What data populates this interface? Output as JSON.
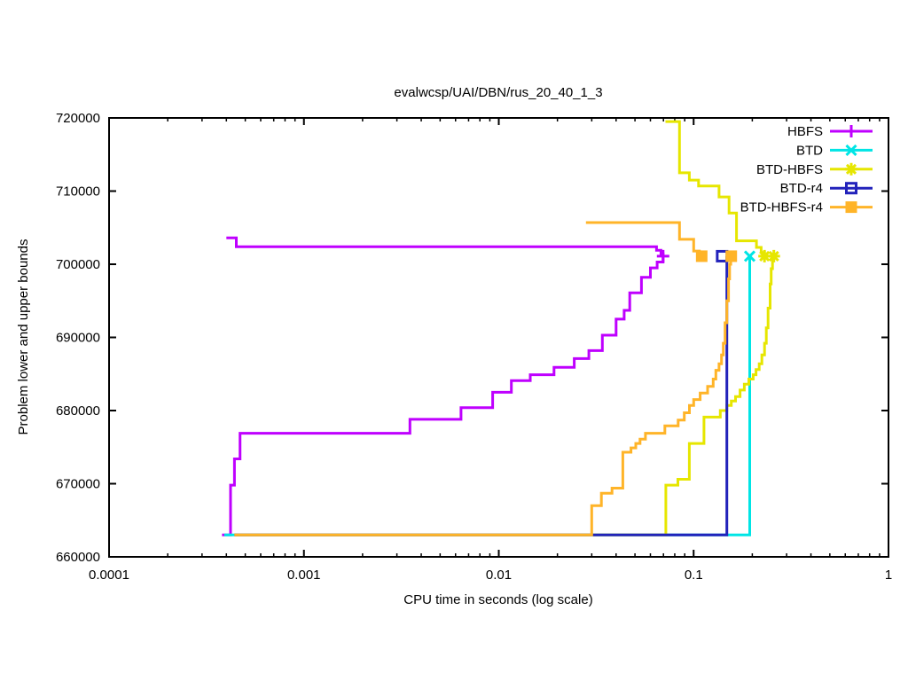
{
  "background": "#ffffff",
  "chart_data": {
    "type": "line",
    "title": "evalwcsp/UAI/DBN/rus_20_40_1_3",
    "xlabel": "CPU time in seconds (log scale)",
    "ylabel": "Problem lower and upper bounds",
    "x_scale": "log",
    "xlim": [
      0.0001,
      1
    ],
    "ylim": [
      660000,
      720000
    ],
    "x_ticks": [
      0.0001,
      0.001,
      0.01,
      0.1,
      1
    ],
    "x_tick_labels": [
      "0.0001",
      "0.001",
      "0.01",
      "0.1",
      "1"
    ],
    "y_ticks": [
      660000,
      670000,
      680000,
      690000,
      700000,
      710000,
      720000
    ],
    "grid": false,
    "legend_position": "top-right-inside",
    "legend": [
      {
        "label": "HBFS",
        "marker": "plus",
        "color": "#bf00ff"
      },
      {
        "label": "BTD",
        "marker": "cross",
        "color": "#00e5e5"
      },
      {
        "label": "BTD-HBFS",
        "marker": "asterisk",
        "color": "#e6e600"
      },
      {
        "label": "BTD-r4",
        "marker": "square-open",
        "color": "#2222bb"
      },
      {
        "label": "BTD-HBFS-r4",
        "marker": "square-filled",
        "color": "#ffb428"
      }
    ],
    "series": [
      {
        "name": "HBFS",
        "role": "upper-bound",
        "color": "#bf00ff",
        "points": [
          [
            0.0004,
            703600
          ],
          [
            0.00045,
            703600
          ],
          [
            0.00045,
            702400
          ],
          [
            0.0645,
            702400
          ],
          [
            0.0645,
            701900
          ],
          [
            0.068,
            701900
          ],
          [
            0.068,
            701400
          ],
          [
            0.0697,
            701400
          ],
          [
            0.0697,
            701100
          ]
        ]
      },
      {
        "name": "HBFS",
        "role": "lower-bound",
        "color": "#bf00ff",
        "points": [
          [
            0.00038,
            663000
          ],
          [
            0.00042,
            663000
          ],
          [
            0.00042,
            669800
          ],
          [
            0.00044,
            669800
          ],
          [
            0.00044,
            673400
          ],
          [
            0.00047,
            673400
          ],
          [
            0.00047,
            676900
          ],
          [
            0.0035,
            676900
          ],
          [
            0.0035,
            678800
          ],
          [
            0.0064,
            678800
          ],
          [
            0.0064,
            680400
          ],
          [
            0.0093,
            680400
          ],
          [
            0.0093,
            682500
          ],
          [
            0.0116,
            682500
          ],
          [
            0.0116,
            684100
          ],
          [
            0.0145,
            684100
          ],
          [
            0.0145,
            684900
          ],
          [
            0.0192,
            684900
          ],
          [
            0.0192,
            685900
          ],
          [
            0.0244,
            685900
          ],
          [
            0.0244,
            687100
          ],
          [
            0.029,
            687100
          ],
          [
            0.029,
            688200
          ],
          [
            0.034,
            688200
          ],
          [
            0.034,
            690300
          ],
          [
            0.04,
            690300
          ],
          [
            0.04,
            692500
          ],
          [
            0.044,
            692500
          ],
          [
            0.044,
            693700
          ],
          [
            0.047,
            693700
          ],
          [
            0.047,
            696100
          ],
          [
            0.054,
            696100
          ],
          [
            0.054,
            698200
          ],
          [
            0.06,
            698200
          ],
          [
            0.06,
            699500
          ],
          [
            0.065,
            699500
          ],
          [
            0.065,
            700300
          ],
          [
            0.0697,
            700300
          ],
          [
            0.0697,
            701100
          ]
        ]
      },
      {
        "name": "BTD",
        "role": "lower-bound",
        "color": "#00e5e5",
        "points": [
          [
            0.00039,
            663000
          ],
          [
            0.194,
            663000
          ],
          [
            0.194,
            701100
          ]
        ]
      },
      {
        "name": "BTD-HBFS",
        "role": "upper-bound",
        "color": "#e6e600",
        "points": [
          [
            0.0717,
            719500
          ],
          [
            0.0846,
            719500
          ],
          [
            0.0846,
            712500
          ],
          [
            0.095,
            712500
          ],
          [
            0.095,
            711500
          ],
          [
            0.106,
            711500
          ],
          [
            0.106,
            710700
          ],
          [
            0.135,
            710700
          ],
          [
            0.135,
            709200
          ],
          [
            0.152,
            709200
          ],
          [
            0.152,
            707000
          ],
          [
            0.166,
            707000
          ],
          [
            0.166,
            703200
          ],
          [
            0.21,
            703200
          ],
          [
            0.21,
            702300
          ],
          [
            0.222,
            702300
          ],
          [
            0.222,
            701600
          ],
          [
            0.231,
            701600
          ],
          [
            0.231,
            701100
          ]
        ]
      },
      {
        "name": "BTD-HBFS",
        "role": "lower-bound",
        "color": "#e6e600",
        "points": [
          [
            0.00044,
            663000
          ],
          [
            0.072,
            663000
          ],
          [
            0.072,
            669800
          ],
          [
            0.083,
            669800
          ],
          [
            0.083,
            670600
          ],
          [
            0.095,
            670600
          ],
          [
            0.095,
            675500
          ],
          [
            0.113,
            675500
          ],
          [
            0.113,
            679100
          ],
          [
            0.137,
            679100
          ],
          [
            0.137,
            680000
          ],
          [
            0.148,
            680000
          ],
          [
            0.148,
            680700
          ],
          [
            0.156,
            680700
          ],
          [
            0.156,
            681300
          ],
          [
            0.164,
            681300
          ],
          [
            0.164,
            681900
          ],
          [
            0.173,
            681900
          ],
          [
            0.173,
            682800
          ],
          [
            0.182,
            682800
          ],
          [
            0.182,
            683600
          ],
          [
            0.192,
            683600
          ],
          [
            0.192,
            684300
          ],
          [
            0.202,
            684300
          ],
          [
            0.202,
            684900
          ],
          [
            0.209,
            684900
          ],
          [
            0.209,
            685600
          ],
          [
            0.217,
            685600
          ],
          [
            0.217,
            686400
          ],
          [
            0.224,
            686400
          ],
          [
            0.224,
            687600
          ],
          [
            0.231,
            687600
          ],
          [
            0.231,
            689200
          ],
          [
            0.236,
            689200
          ],
          [
            0.236,
            691300
          ],
          [
            0.241,
            691300
          ],
          [
            0.241,
            694000
          ],
          [
            0.247,
            694000
          ],
          [
            0.247,
            697300
          ],
          [
            0.25,
            697300
          ],
          [
            0.25,
            699400
          ],
          [
            0.254,
            699400
          ],
          [
            0.254,
            701100
          ],
          [
            0.258,
            701100
          ]
        ]
      },
      {
        "name": "BTD-r4",
        "role": "lower-bound",
        "color": "#2222bb",
        "points": [
          [
            0.00044,
            663000
          ],
          [
            0.148,
            663000
          ],
          [
            0.148,
            701100
          ]
        ]
      },
      {
        "name": "BTD-HBFS-r4",
        "role": "upper-bound",
        "color": "#ffb428",
        "points": [
          [
            0.028,
            705700
          ],
          [
            0.0846,
            705700
          ],
          [
            0.0846,
            703400
          ],
          [
            0.1,
            703400
          ],
          [
            0.1,
            701800
          ],
          [
            0.107,
            701800
          ],
          [
            0.107,
            701100
          ],
          [
            0.11,
            701100
          ]
        ]
      },
      {
        "name": "BTD-HBFS-r4",
        "role": "lower-bound",
        "color": "#ffb428",
        "points": [
          [
            0.00044,
            663000
          ],
          [
            0.03,
            663000
          ],
          [
            0.03,
            667000
          ],
          [
            0.0336,
            667000
          ],
          [
            0.0336,
            668700
          ],
          [
            0.0381,
            668700
          ],
          [
            0.0381,
            669400
          ],
          [
            0.0433,
            669400
          ],
          [
            0.0433,
            674300
          ],
          [
            0.0477,
            674300
          ],
          [
            0.0477,
            674900
          ],
          [
            0.0505,
            674900
          ],
          [
            0.0505,
            675500
          ],
          [
            0.0531,
            675500
          ],
          [
            0.0531,
            676100
          ],
          [
            0.0566,
            676100
          ],
          [
            0.0566,
            676900
          ],
          [
            0.0712,
            676900
          ],
          [
            0.0712,
            677900
          ],
          [
            0.0833,
            677900
          ],
          [
            0.0833,
            678700
          ],
          [
            0.0895,
            678700
          ],
          [
            0.0895,
            679700
          ],
          [
            0.0951,
            679700
          ],
          [
            0.0951,
            680700
          ],
          [
            0.1,
            680700
          ],
          [
            0.1,
            681500
          ],
          [
            0.108,
            681500
          ],
          [
            0.108,
            682400
          ],
          [
            0.118,
            682400
          ],
          [
            0.118,
            683300
          ],
          [
            0.126,
            683300
          ],
          [
            0.126,
            684300
          ],
          [
            0.13,
            684300
          ],
          [
            0.13,
            685500
          ],
          [
            0.135,
            685500
          ],
          [
            0.135,
            686400
          ],
          [
            0.139,
            686400
          ],
          [
            0.139,
            687600
          ],
          [
            0.142,
            687600
          ],
          [
            0.142,
            689200
          ],
          [
            0.145,
            689200
          ],
          [
            0.145,
            692000
          ],
          [
            0.148,
            692000
          ],
          [
            0.148,
            695000
          ],
          [
            0.151,
            695000
          ],
          [
            0.151,
            698000
          ],
          [
            0.153,
            698000
          ],
          [
            0.153,
            700000
          ],
          [
            0.155,
            700000
          ],
          [
            0.155,
            701100
          ]
        ]
      }
    ],
    "markers": [
      {
        "name": "HBFS",
        "shape": "plus",
        "color": "#bf00ff",
        "points": [
          [
            0.0697,
            701100
          ]
        ]
      },
      {
        "name": "BTD",
        "shape": "cross",
        "color": "#00e5e5",
        "points": [
          [
            0.194,
            701100
          ]
        ]
      },
      {
        "name": "BTD-HBFS",
        "shape": "asterisk",
        "color": "#e6e600",
        "points": [
          [
            0.231,
            701100
          ],
          [
            0.258,
            701100
          ]
        ]
      },
      {
        "name": "BTD-r4",
        "shape": "square-open",
        "color": "#2222bb",
        "points": [
          [
            0.14,
            701100
          ]
        ]
      },
      {
        "name": "BTD-HBFS-r4",
        "shape": "square-filled",
        "color": "#ffb428",
        "points": [
          [
            0.11,
            701100
          ],
          [
            0.156,
            701100
          ]
        ]
      }
    ]
  }
}
